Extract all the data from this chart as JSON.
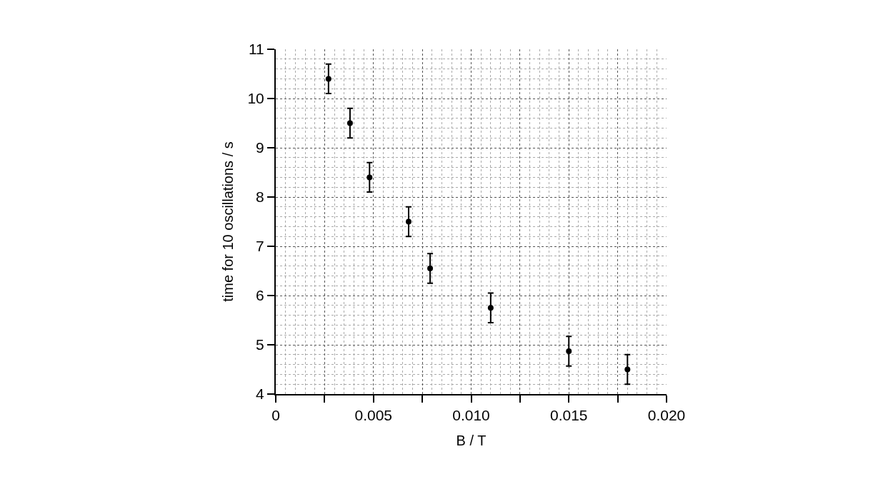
{
  "chart_data": {
    "type": "scatter",
    "xlabel": "B / T",
    "ylabel": "time for 10 oscillations / s",
    "x": [
      0.0027,
      0.0038,
      0.0048,
      0.0068,
      0.0079,
      0.011,
      0.015,
      0.018
    ],
    "values": [
      10.4,
      9.5,
      8.4,
      7.5,
      6.55,
      5.75,
      4.87,
      4.5
    ],
    "errors": [
      0.3,
      0.3,
      0.3,
      0.3,
      0.3,
      0.3,
      0.3,
      0.3
    ],
    "color": "#000000",
    "marker": "circle",
    "xlim": [
      0,
      0.02
    ],
    "xticks": [
      0,
      {
        "value": 0.0025,
        "label": null
      },
      {
        "value": 0.005,
        "label": "0.005"
      },
      {
        "value": 0.0075,
        "label": null
      },
      {
        "value": 0.01,
        "label": "0.010"
      },
      {
        "value": 0.0125,
        "label": null
      },
      {
        "value": 0.015,
        "label": "0.015"
      },
      {
        "value": 0.0175,
        "label": null
      },
      {
        "value": 0.02,
        "label": "0.020"
      }
    ],
    "ylim": [
      4,
      11
    ],
    "yticks": [
      4,
      5,
      6,
      7,
      8,
      9,
      10,
      11
    ],
    "grid": true
  }
}
